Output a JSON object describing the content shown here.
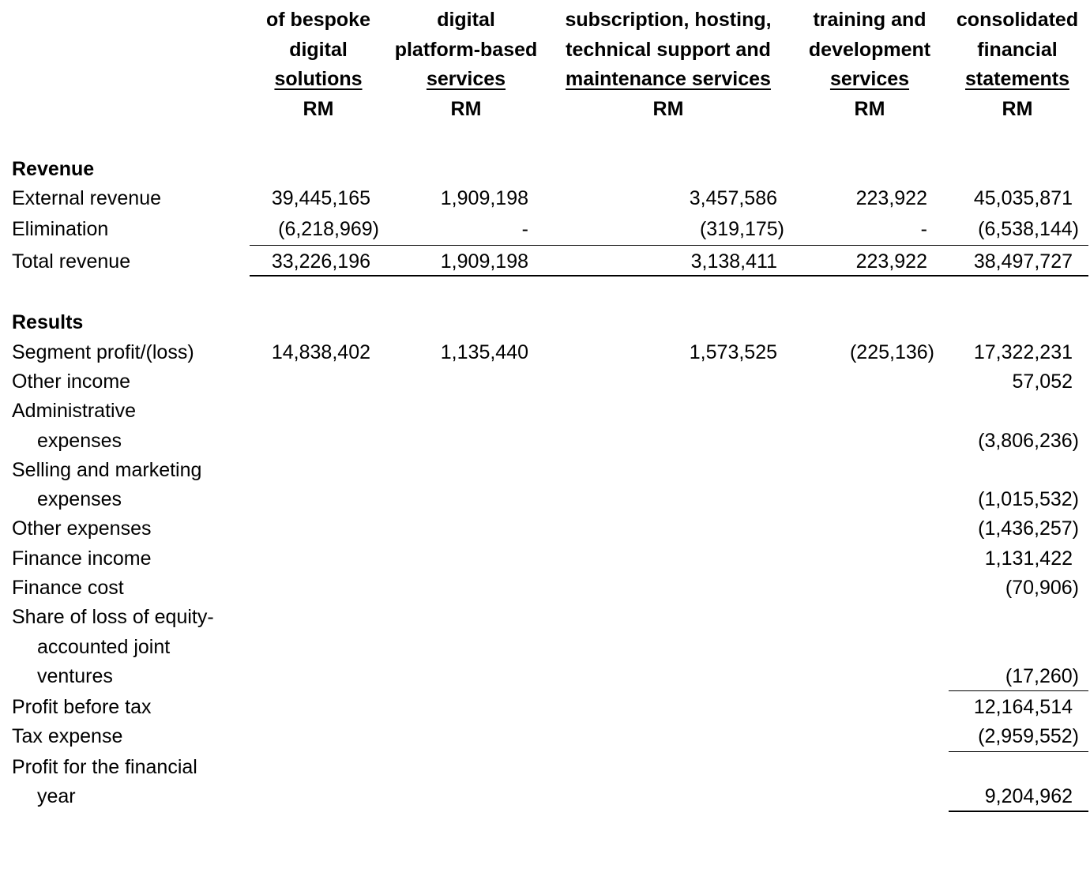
{
  "columns": [
    {
      "lines": [
        "of bespoke",
        "digital"
      ],
      "underlined": "solutions",
      "unit": "RM"
    },
    {
      "lines": [
        "digital",
        "platform-based"
      ],
      "underlined": "services",
      "unit": "RM"
    },
    {
      "lines": [
        "subscription, hosting,",
        "technical support and"
      ],
      "underlined": "maintenance services",
      "unit": "RM"
    },
    {
      "lines": [
        "training and",
        "development"
      ],
      "underlined": "services",
      "unit": "RM"
    },
    {
      "lines": [
        "consolidated",
        "financial"
      ],
      "underlined": "statements",
      "unit": "RM"
    }
  ],
  "revenue": {
    "heading": "Revenue",
    "external": {
      "label": "External revenue",
      "values": [
        "39,445,165",
        "1,909,198",
        "3,457,586",
        "223,922",
        "45,035,871"
      ]
    },
    "elimination": {
      "label": "Elimination",
      "values": [
        "(6,218,969)",
        "-",
        "(319,175)",
        "-",
        "(6,538,144)"
      ]
    },
    "total": {
      "label": "Total revenue",
      "values": [
        "33,226,196",
        "1,909,198",
        "3,138,411",
        "223,922",
        "38,497,727"
      ]
    }
  },
  "results": {
    "heading": "Results",
    "segment": {
      "label": "Segment profit/(loss)",
      "values": [
        "14,838,402",
        "1,135,440",
        "1,573,525",
        "(225,136)",
        "17,322,231"
      ]
    },
    "other_income": {
      "label": "Other income",
      "value": "57,052"
    },
    "admin": {
      "label_line1": "Administrative",
      "label_line2": "expenses",
      "value": "(3,806,236)"
    },
    "selling": {
      "label_line1": "Selling and marketing",
      "label_line2": "expenses",
      "value": "(1,015,532)"
    },
    "other_expenses": {
      "label": "Other expenses",
      "value": "(1,436,257)"
    },
    "finance_income": {
      "label": "Finance income",
      "value": "1,131,422"
    },
    "finance_cost": {
      "label": "Finance cost",
      "value": "(70,906)"
    },
    "share_loss": {
      "label_line1": "Share of loss of equity-",
      "label_line2": "accounted joint",
      "label_line3": "ventures",
      "value": "(17,260)"
    },
    "pbt": {
      "label": "Profit before tax",
      "value": "12,164,514"
    },
    "tax": {
      "label": "Tax expense",
      "value": "(2,959,552)"
    },
    "profit_year": {
      "label_line1": "Profit for the financial",
      "label_line2": "year",
      "value": "9,204,962"
    }
  }
}
